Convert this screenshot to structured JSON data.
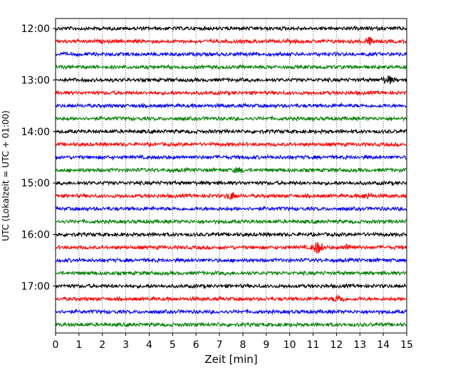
{
  "chart_data": {
    "type": "line",
    "title": "",
    "xlabel": "Zeit  [min]",
    "ylabel": "UTC (Lokalzeit = UTC + 01:00)",
    "xlim": [
      0,
      15
    ],
    "x_ticks": [
      "0",
      "1",
      "2",
      "3",
      "4",
      "5",
      "6",
      "7",
      "8",
      "9",
      "10",
      "11",
      "12",
      "13",
      "14",
      "15"
    ],
    "y_tick_labels": [
      "12:00",
      "13:00",
      "14:00",
      "15:00",
      "16:00",
      "17:00"
    ],
    "trace_interval_minutes": 15,
    "start_time": "12:00",
    "trace_count": 24,
    "trace_colors": [
      "#000000",
      "#ff0000",
      "#0000ff",
      "#008000"
    ],
    "grid": "vertical dotted lines at each minute",
    "events": [
      {
        "trace": "12:15",
        "x": 13.4,
        "amplitude": 0.8
      },
      {
        "trace": "13:00",
        "x": 14.2,
        "amplitude": 0.9
      },
      {
        "trace": "15:15",
        "x": 7.5,
        "amplitude": 0.8
      },
      {
        "trace": "15:15",
        "x": 13.3,
        "amplitude": 0.6
      },
      {
        "trace": "16:15",
        "x": 11.2,
        "amplitude": 1.4
      },
      {
        "trace": "16:15",
        "x": 12.5,
        "amplitude": 0.6
      },
      {
        "trace": "17:15",
        "x": 12.1,
        "amplitude": 0.9
      },
      {
        "trace": "14:45",
        "x": 7.8,
        "amplitude": 0.5
      }
    ]
  }
}
